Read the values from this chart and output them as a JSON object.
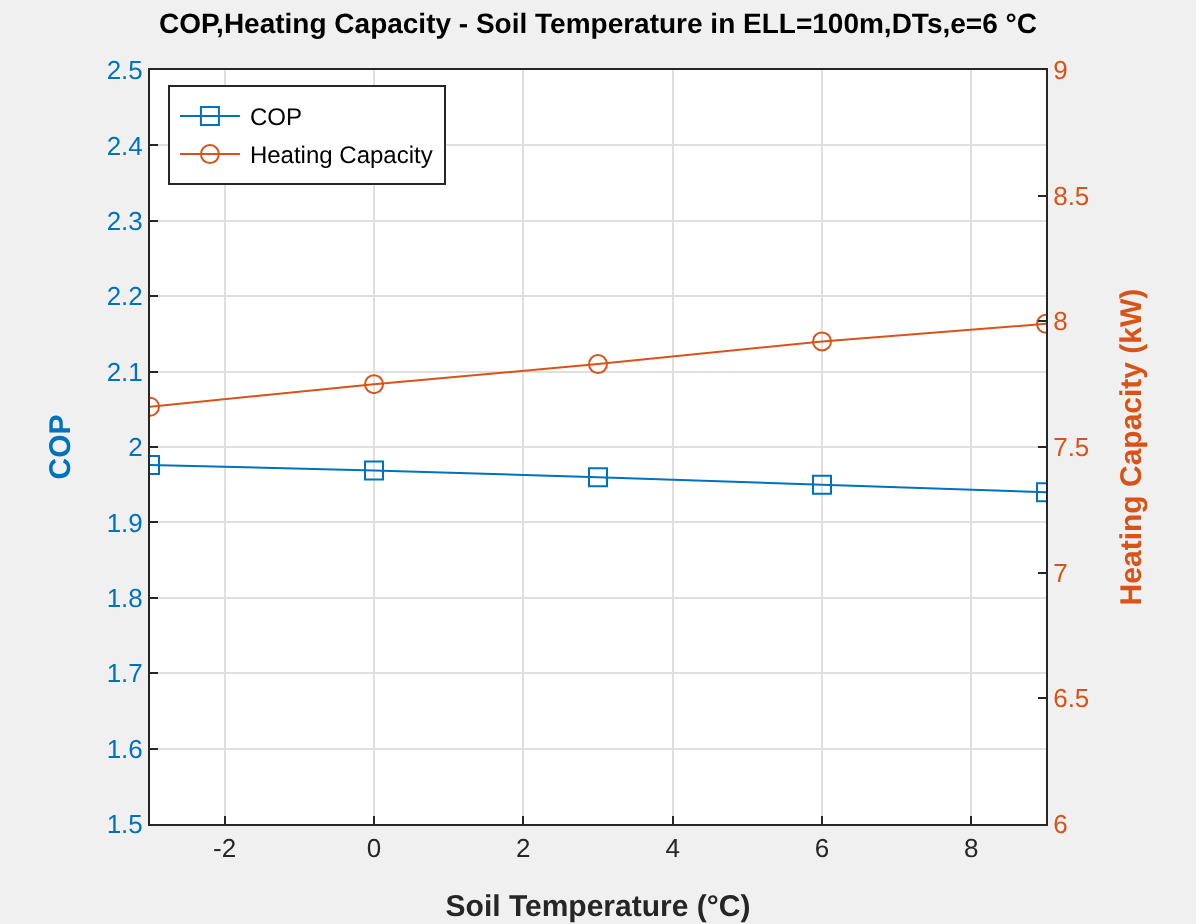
{
  "chart_data": {
    "type": "line",
    "title": "COP,Heating Capacity - Soil Temperature in ELL=100m,DTs,e=6 °C",
    "xlabel": "Soil Temperature (°C)",
    "ylabel": "COP",
    "y2label": "Heating Capacity (kW)",
    "x": [
      -3,
      0,
      3,
      6,
      9
    ],
    "series": [
      {
        "name": "COP",
        "color": "#0072bd",
        "marker": "square",
        "values": [
          1.976,
          1.969,
          1.96,
          1.95,
          1.94
        ]
      },
      {
        "name": "Heating Capacity",
        "color": "#d95319",
        "marker": "circle",
        "axis": "y2",
        "values": [
          7.66,
          7.75,
          7.83,
          7.92,
          7.99
        ]
      }
    ],
    "xlim": [
      -3,
      9
    ],
    "xticks": [
      -2,
      0,
      2,
      4,
      6,
      8
    ],
    "ylim": [
      1.5,
      2.5
    ],
    "yticks": [
      1.5,
      1.6,
      1.7,
      1.8,
      1.9,
      2,
      2.1,
      2.2,
      2.3,
      2.4,
      2.5
    ],
    "y2lim": [
      6,
      9
    ],
    "y2ticks": [
      6,
      6.5,
      7,
      7.5,
      8,
      8.5,
      9
    ],
    "grid": true,
    "legend": "top left",
    "line_style": "solid"
  }
}
